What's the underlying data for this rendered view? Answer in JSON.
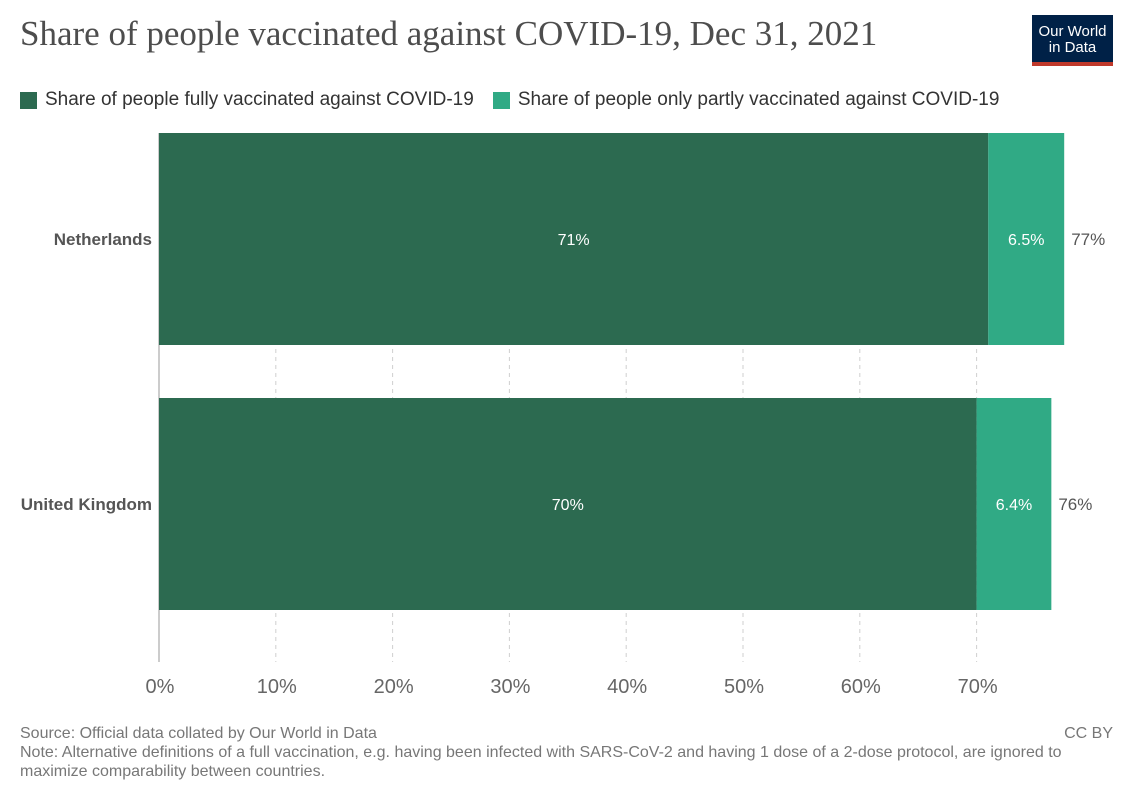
{
  "header": {
    "title": "Share of people vaccinated against COVID-19, Dec 31, 2021",
    "logo_line1": "Our World",
    "logo_line2": "in Data"
  },
  "legend": {
    "items": [
      {
        "label": "Share of people fully vaccinated against COVID-19",
        "color": "#2c6a50"
      },
      {
        "label": "Share of people only partly vaccinated against COVID-19",
        "color": "#30aa85"
      }
    ]
  },
  "chart_data": {
    "type": "bar",
    "orientation": "horizontal",
    "stacked": true,
    "title": "Share of people vaccinated against COVID-19, Dec 31, 2021",
    "categories": [
      "Netherlands",
      "United Kingdom"
    ],
    "series": [
      {
        "name": "Share of people fully vaccinated against COVID-19",
        "values": [
          71,
          70
        ],
        "labels": [
          "71%",
          "70%"
        ],
        "color": "#2c6a50"
      },
      {
        "name": "Share of people only partly vaccinated against COVID-19",
        "values": [
          6.5,
          6.4
        ],
        "labels": [
          "6.5%",
          "6.4%"
        ],
        "color": "#30aa85"
      }
    ],
    "totals": [
      77,
      76
    ],
    "total_labels": [
      "77%",
      "76%"
    ],
    "xlim": [
      0,
      78
    ],
    "xticks": [
      0,
      10,
      20,
      30,
      40,
      50,
      60,
      70
    ],
    "xtick_labels": [
      "0%",
      "10%",
      "20%",
      "30%",
      "40%",
      "50%",
      "60%",
      "70%"
    ],
    "grid": "vertical dashed",
    "legend_position": "top-left"
  },
  "footer": {
    "source": "Source: Official data collated by Our World in Data",
    "note": "Note: Alternative definitions of a full vaccination, e.g. having been infected with SARS-CoV-2 and having 1 dose of a 2-dose protocol, are ignored to maximize comparability between countries.",
    "license": "CC BY"
  }
}
